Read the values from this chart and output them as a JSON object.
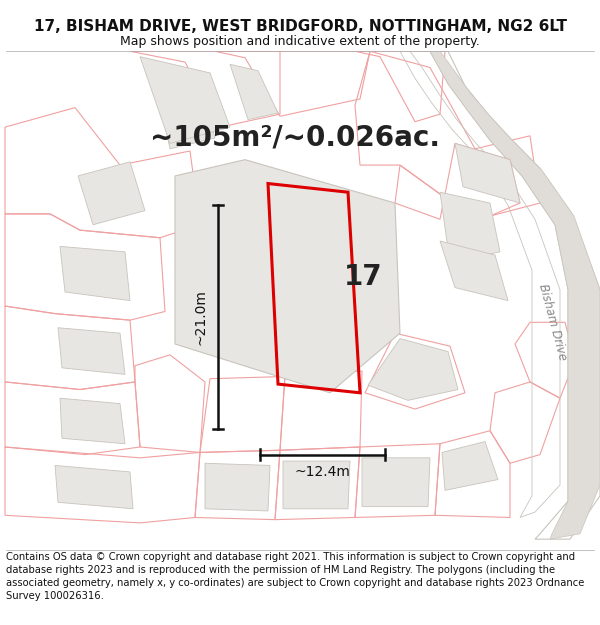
{
  "title_line1": "17, BISHAM DRIVE, WEST BRIDGFORD, NOTTINGHAM, NG2 6LT",
  "title_line2": "Map shows position and indicative extent of the property.",
  "area_text": "~105m²/~0.026ac.",
  "width_label": "~12.4m",
  "height_label": "~21.0m",
  "number_label": "17",
  "road_label": "Bisham Drive",
  "footer_text": "Contains OS data © Crown copyright and database right 2021. This information is subject to Crown copyright and database rights 2023 and is reproduced with the permission of HM Land Registry. The polygons (including the associated geometry, namely x, y co-ordinates) are subject to Crown copyright and database rights 2023 Ordnance Survey 100026316.",
  "map_bg": "#ffffff",
  "plot_fill": "#ffffff",
  "plot_outline_color": "#dd0000",
  "block_fill": "#e8e6e2",
  "block_edge": "#c8c4bc",
  "outline_color": "#f0a0a0",
  "road_fill": "#e8e6e2",
  "road_edge": "#c8c4bc",
  "white_bg": "#ffffff",
  "title_fontsize": 11,
  "subtitle_fontsize": 9,
  "area_fontsize": 20,
  "footer_fontsize": 7.2,
  "dim_line_color": "#111111",
  "text_color": "#222222"
}
